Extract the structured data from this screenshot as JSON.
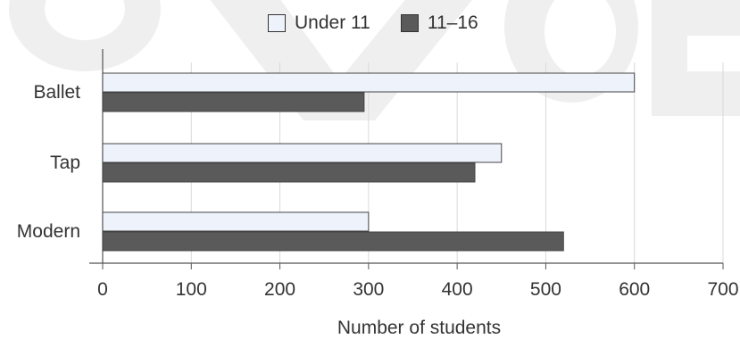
{
  "chart_data": {
    "type": "bar",
    "orientation": "horizontal",
    "categories": [
      "Ballet",
      "Tap",
      "Modern"
    ],
    "series": [
      {
        "name": "Under 11",
        "values": [
          600,
          450,
          300
        ],
        "color": "#eef2fb"
      },
      {
        "name": "11–16",
        "values": [
          295,
          420,
          520
        ],
        "color": "#5a5a5a"
      }
    ],
    "xlabel": "Number of students",
    "xlim": [
      0,
      700
    ],
    "xticks": [
      "0",
      "100",
      "200",
      "300",
      "400",
      "500",
      "600",
      "700"
    ],
    "grid": true,
    "legend_position": "top"
  },
  "colors": {
    "grid": "#d9d9d9",
    "axis": "#555555",
    "watermark": "#e2e2e2"
  }
}
